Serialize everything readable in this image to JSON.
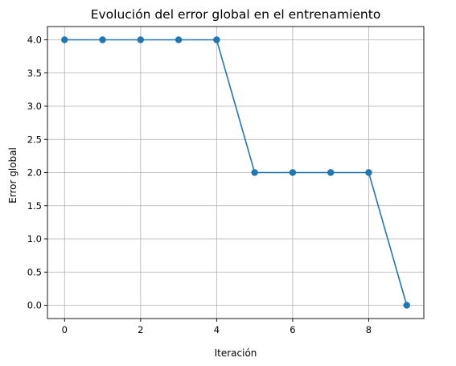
{
  "chart_data": {
    "type": "line",
    "title": "Evolución del error global en el entrenamiento",
    "xlabel": "Iteración",
    "ylabel": "Error global",
    "x": [
      0,
      1,
      2,
      3,
      4,
      5,
      6,
      7,
      8,
      9
    ],
    "series": [
      {
        "values": [
          4.0,
          4.0,
          4.0,
          4.0,
          4.0,
          2.0,
          2.0,
          2.0,
          2.0,
          0.0
        ]
      }
    ],
    "xlim": [
      -0.45,
      9.45
    ],
    "ylim": [
      -0.2,
      4.2
    ],
    "xticks": [
      0,
      2,
      4,
      6,
      8
    ],
    "xtick_labels": [
      "0",
      "2",
      "4",
      "6",
      "8"
    ],
    "yticks": [
      0.0,
      0.5,
      1.0,
      1.5,
      2.0,
      2.5,
      3.0,
      3.5,
      4.0
    ],
    "ytick_labels": [
      "0.0",
      "0.5",
      "1.0",
      "1.5",
      "2.0",
      "2.5",
      "3.0",
      "3.5",
      "4.0"
    ],
    "grid": true,
    "line_color": "#1f77b4",
    "marker": "circle"
  }
}
